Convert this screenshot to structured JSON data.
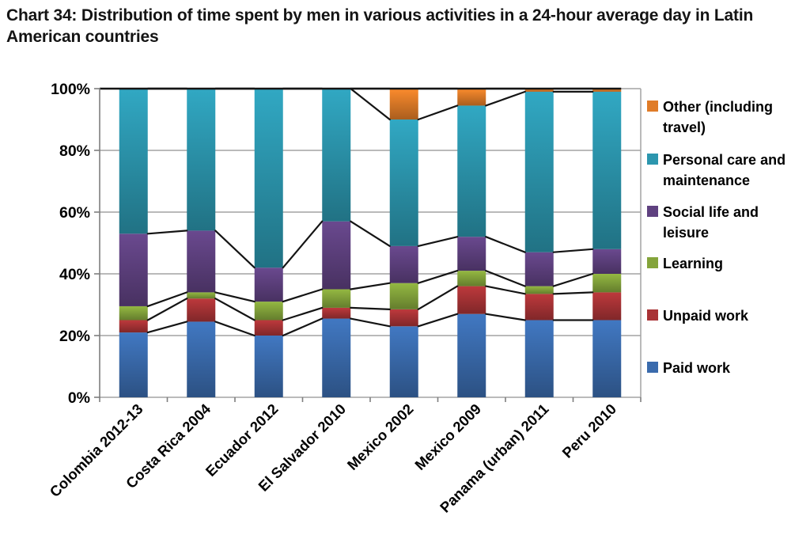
{
  "title": "Chart 34: Distribution of time spent by men in various activities in a 24-hour average day in Latin American countries",
  "chart_data": {
    "type": "bar",
    "stacked": true,
    "units": "percent of 24-hour day",
    "title": "Chart 34: Distribution of time spent by men in various activities in a 24-hour average day in Latin American countries",
    "xlabel": "",
    "ylabel": "",
    "ylim": [
      0,
      100
    ],
    "grid": true,
    "legend_position": "right",
    "series_connector_lines": true,
    "yticks": [
      "0%",
      "20%",
      "40%",
      "60%",
      "80%",
      "100%"
    ],
    "categories": [
      "Colombia 2012-13",
      "Costa Rica 2004",
      "Ecuador 2012",
      "El Salvador 2010",
      "Mexico 2002",
      "Mexico 2009",
      "Panama (urban) 2011",
      "Peru 2010"
    ],
    "series": [
      {
        "name": "Paid work",
        "color": "#3A6BAD",
        "values": [
          21,
          24.5,
          20,
          25.5,
          23,
          27,
          25,
          25
        ]
      },
      {
        "name": "Unpaid work",
        "color": "#A93336",
        "values": [
          4,
          7.5,
          5,
          3.5,
          5.5,
          9,
          8.5,
          9
        ]
      },
      {
        "name": "Learning",
        "color": "#84A43B",
        "values": [
          4.5,
          2,
          6,
          6,
          8.5,
          5,
          2.5,
          6
        ]
      },
      {
        "name": "Social life and leisure",
        "color": "#5F4180",
        "values": [
          23.5,
          20,
          11,
          22,
          12,
          11,
          11,
          8
        ]
      },
      {
        "name": "Personal care and maintenance",
        "color": "#2C96AE",
        "values": [
          47,
          46,
          58,
          43,
          41,
          42.5,
          52,
          51
        ]
      },
      {
        "name": "Other (including travel)",
        "color": "#E07C28",
        "values": [
          0,
          0,
          0,
          0,
          10,
          5.5,
          1,
          1
        ]
      }
    ]
  }
}
